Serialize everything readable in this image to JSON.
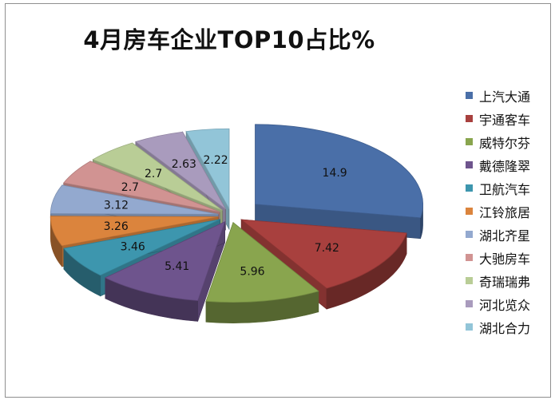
{
  "chart_data": {
    "type": "pie",
    "title": "4月房车企业TOP10占比%",
    "categories": [
      "上汽大通",
      "宇通客车",
      "威特尔芬",
      "戴德隆翠",
      "卫航汽车",
      "江铃旅居",
      "湖北齐星",
      "大驰房车",
      "奇瑞瑞弗",
      "河北览众",
      "湖北合力"
    ],
    "values": [
      14.9,
      7.42,
      5.96,
      5.41,
      3.46,
      3.26,
      3.12,
      2.7,
      2.7,
      2.63,
      2.22
    ],
    "value_labels": [
      "14.9",
      "7.42",
      "5.96",
      "5.41",
      "3.46",
      "3.26",
      "3.12",
      "2.7",
      "2.7",
      "2.63",
      "2.22"
    ],
    "colors": [
      "#4a6fa8",
      "#a8403e",
      "#89a54e",
      "#6e548d",
      "#3d96ae",
      "#db843d",
      "#93a9cf",
      "#d19392",
      "#b9cd96",
      "#a99bbd",
      "#92c5d8"
    ],
    "style": "exploded-3d",
    "legend_position": "right"
  }
}
